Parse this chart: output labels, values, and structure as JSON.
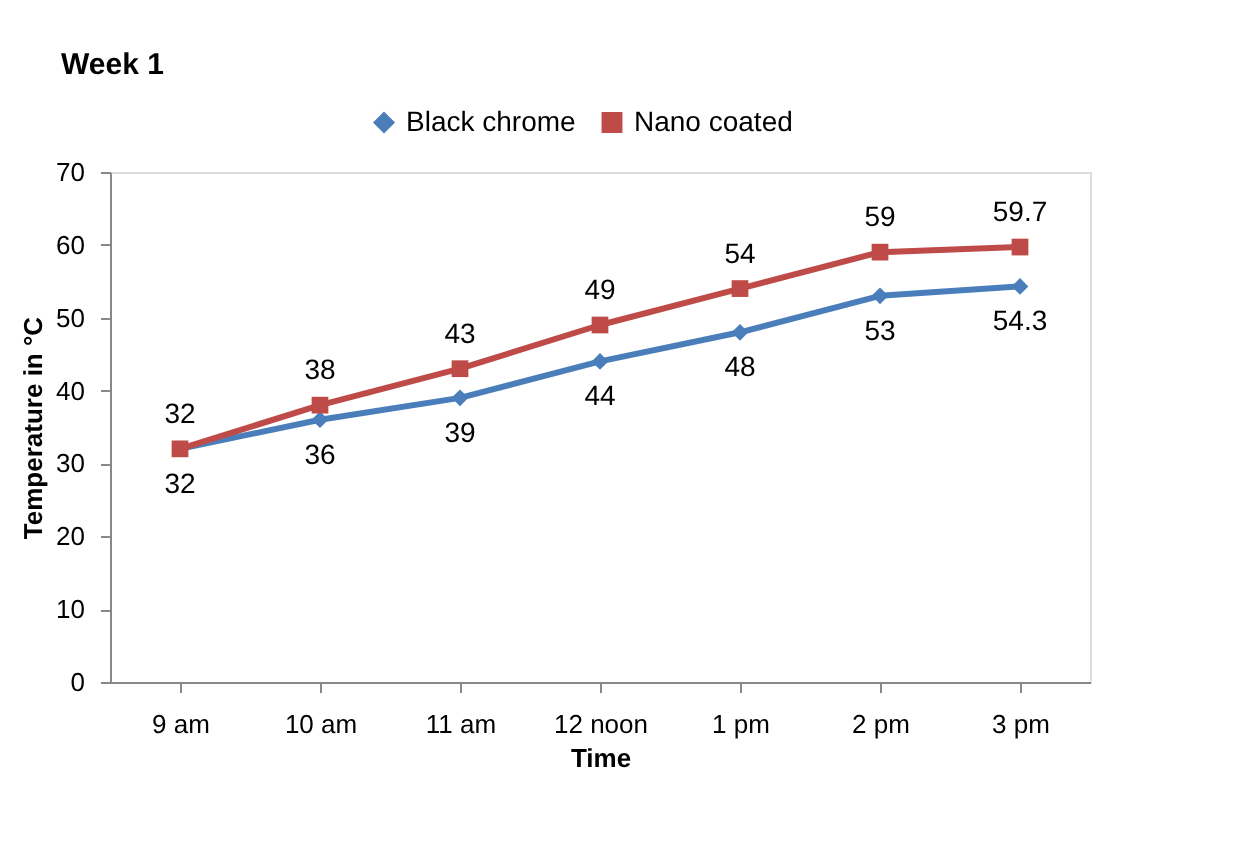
{
  "chart_data": {
    "type": "line",
    "title": "Week 1",
    "xlabel": "Time",
    "ylabel": "Temperature in °C",
    "categories": [
      "9 am",
      "10 am",
      "11 am",
      "12 noon",
      "1 pm",
      "2 pm",
      "3 pm"
    ],
    "series": [
      {
        "name": "Black chrome",
        "color": "#4a7ebb",
        "marker": "diamond",
        "values": [
          32,
          36,
          39,
          44,
          48,
          53,
          54.3
        ]
      },
      {
        "name": "Nano coated",
        "color": "#be4b48",
        "marker": "square",
        "values": [
          32,
          38,
          43,
          49,
          54,
          59,
          59.7
        ]
      }
    ],
    "ylim": [
      0,
      70
    ],
    "yticks": [
      0,
      10,
      20,
      30,
      40,
      50,
      60,
      70
    ],
    "data_labels": true,
    "legend": "top",
    "grid": false,
    "line_style": "solid"
  }
}
